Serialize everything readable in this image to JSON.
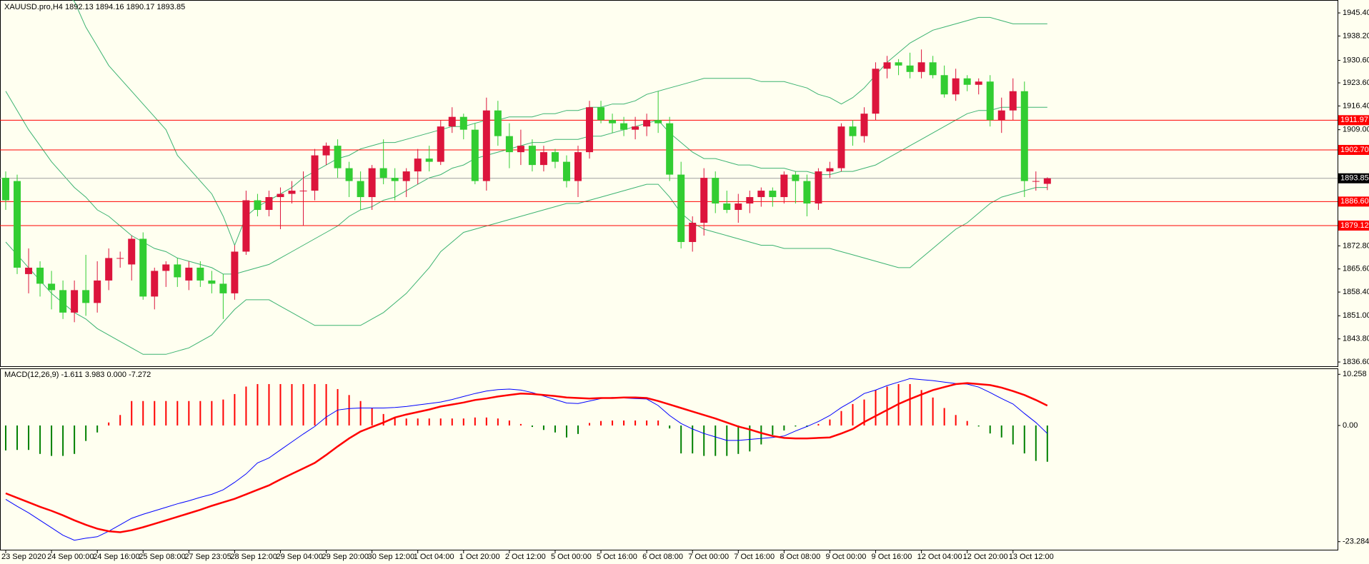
{
  "chart_data": [
    {
      "type": "candlestick",
      "title": "XAUUSD.pro,H4  1892.13 1894.16 1890.17 1893.85",
      "categories": [
        "23 Sep 2020",
        null,
        null,
        null,
        "24 Sep 00:00",
        null,
        null,
        null,
        "24 Sep 16:00",
        null,
        null,
        null,
        "25 Sep 08:00",
        null,
        null,
        null,
        "27 Sep 23:05",
        null,
        null,
        null,
        "28 Sep 12:00",
        null,
        null,
        null,
        "29 Sep 04:00",
        null,
        null,
        null,
        "29 Sep 20:00",
        null,
        null,
        null,
        "30 Sep 12:00",
        null,
        null,
        null,
        "1 Oct 04:00",
        null,
        null,
        null,
        "1 Oct 20:00",
        null,
        null,
        null,
        "2 Oct 12:00",
        null,
        null,
        null,
        "5 Oct 00:00",
        null,
        null,
        null,
        "5 Oct 16:00",
        null,
        null,
        null,
        "6 Oct 08:00",
        null,
        null,
        null,
        "7 Oct 00:00",
        null,
        null,
        null,
        "7 Oct 16:00",
        null,
        null,
        null,
        "8 Oct 08:00",
        null,
        null,
        null,
        "9 Oct 00:00",
        null,
        null,
        null,
        "9 Oct 16:00",
        null,
        null,
        null,
        "12 Oct 04:00",
        null,
        null,
        null,
        "12 Oct 20:00",
        null,
        null,
        null,
        "13 Oct 12:00",
        null,
        null,
        null
      ],
      "open": [
        1894,
        1893,
        1864,
        1866,
        1861,
        1859,
        1852,
        1859,
        1855,
        1862,
        1869,
        1867,
        1875,
        1857,
        1865,
        1867,
        1862,
        1866,
        1862,
        1861,
        1858,
        1871,
        1887,
        1884,
        1888,
        1889,
        1890,
        1890,
        1901,
        1904,
        1897,
        1893,
        1888,
        1897,
        1894,
        1893,
        1896,
        1900,
        1899,
        1910,
        1913,
        1909,
        1893,
        1915,
        1907,
        1902,
        1904,
        1898,
        1902,
        1899,
        1893,
        1902,
        1916,
        1912,
        1911,
        1909,
        1910,
        1912,
        1911,
        1895,
        1874,
        1880,
        1894,
        1886,
        1884,
        1886,
        1888,
        1890,
        1888,
        1895,
        1893,
        1886,
        1896,
        1897,
        1910,
        1907,
        1914,
        1928,
        1930,
        1929,
        1927,
        1930,
        1926,
        1920,
        1925,
        1923,
        1924,
        1912,
        1915,
        1921,
        1893,
        1892.13
      ],
      "high": [
        1896,
        1895,
        1872,
        1868,
        1865,
        1862,
        1862,
        1870,
        1868,
        1872,
        1871,
        1876,
        1877,
        1866,
        1868,
        1869,
        1868,
        1868,
        1865,
        1864,
        1873,
        1890,
        1889,
        1890,
        1891,
        1893,
        1896,
        1903,
        1905,
        1906,
        1899,
        1896,
        1898,
        1906,
        1897,
        1897,
        1903,
        1904,
        1912,
        1916,
        1914,
        1911,
        1919,
        1918,
        1911,
        1909,
        1906,
        1904,
        1903,
        1901,
        1904,
        1918,
        1918,
        1914,
        1913,
        1913,
        1914,
        1921,
        1913,
        1899,
        1882,
        1897,
        1896,
        1890,
        1889,
        1890,
        1891,
        1891,
        1896,
        1896,
        1895,
        1897,
        1899,
        1911,
        1912,
        1916,
        1930,
        1932,
        1931,
        1933,
        1934,
        1932,
        1929,
        1928,
        1926,
        1925,
        1926,
        1919,
        1925,
        1924,
        1896,
        1894.16
      ],
      "low": [
        1884,
        1864,
        1858,
        1857,
        1853,
        1850,
        1849,
        1851,
        1852,
        1859,
        1866,
        1862,
        1856,
        1853,
        1860,
        1860,
        1859,
        1860,
        1858,
        1850,
        1856,
        1870,
        1882,
        1882,
        1878,
        1886,
        1879,
        1887,
        1898,
        1894,
        1888,
        1884,
        1884,
        1892,
        1887,
        1888,
        1892,
        1896,
        1898,
        1908,
        1906,
        1892,
        1890,
        1904,
        1897,
        1898,
        1896,
        1896,
        1897,
        1891,
        1888,
        1900,
        1911,
        1908,
        1907,
        1906,
        1907,
        1908,
        1893,
        1872,
        1871,
        1876,
        1883,
        1883,
        1880,
        1883,
        1885,
        1885,
        1886,
        1886,
        1882,
        1884,
        1894,
        1896,
        1904,
        1905,
        1912,
        1925,
        1926,
        1925,
        1925,
        1925,
        1919,
        1918,
        1921,
        1920,
        1910,
        1908,
        1912,
        1888,
        1890,
        1890.17
      ],
      "close": [
        1887,
        1866,
        1866,
        1861,
        1859,
        1852,
        1859,
        1855,
        1862,
        1869,
        1869,
        1875,
        1857,
        1865,
        1867,
        1863,
        1866,
        1862,
        1861,
        1858,
        1871,
        1887,
        1884,
        1888,
        1889,
        1890,
        1890,
        1901,
        1904,
        1897,
        1893,
        1888,
        1897,
        1894,
        1893,
        1896,
        1900,
        1899,
        1910,
        1913,
        1909,
        1893,
        1915,
        1907,
        1902,
        1904,
        1898,
        1902,
        1899,
        1893,
        1902,
        1916,
        1912,
        1911,
        1909,
        1910,
        1912,
        1911,
        1895,
        1874,
        1880,
        1894,
        1886,
        1884,
        1886,
        1888,
        1890,
        1888,
        1895,
        1893,
        1886,
        1896,
        1897,
        1910,
        1907,
        1914,
        1928,
        1930,
        1929,
        1927,
        1930,
        1926,
        1920,
        1925,
        1923,
        1924,
        1912,
        1915,
        1921,
        1893,
        1893,
        1893.85
      ],
      "up_color": "#dc143c",
      "down_color": "#32cd32",
      "overlays": [
        {
          "color": "#3cb371",
          "values": [
            1965,
            1962,
            1959,
            1957,
            1955,
            1952,
            1949,
            1941,
            1935,
            1929,
            1925,
            1921,
            1917,
            1913,
            1909,
            1901,
            1897,
            1893,
            1889,
            1882,
            1873,
            1882,
            1885,
            1887,
            1889,
            1891,
            1894,
            1896,
            1898,
            1900,
            1901,
            1903,
            1904,
            1905,
            1905,
            1906,
            1907,
            1908,
            1909,
            1910,
            1910,
            1911,
            1912,
            1912,
            1913,
            1913,
            1913,
            1914,
            1914,
            1915,
            1915,
            1916,
            1916,
            1917,
            1917,
            1918,
            1920,
            1921,
            1922,
            1923,
            1924,
            1925,
            1925,
            1925,
            1925,
            1925,
            1924,
            1924,
            1924,
            1923,
            1922,
            1920,
            1919,
            1917,
            1919,
            1922,
            1926,
            1930,
            1933,
            1936,
            1938,
            1940,
            1941,
            1942,
            1943,
            1944,
            1944,
            1943,
            1942,
            1942,
            1942,
            1942
          ]
        },
        {
          "color": "#3cb371",
          "values": [
            1921,
            1915,
            1909,
            1904,
            1899,
            1895,
            1891,
            1888,
            1884,
            1882,
            1879,
            1876,
            1874,
            1872,
            1871,
            1869,
            1868,
            1867,
            1866,
            1864,
            1864,
            1865,
            1866,
            1867,
            1869,
            1871,
            1873,
            1875,
            1877,
            1879,
            1882,
            1884,
            1885,
            1887,
            1888,
            1890,
            1892,
            1894,
            1895,
            1897,
            1898,
            1900,
            1901,
            1902,
            1903,
            1904,
            1905,
            1905,
            1906,
            1906,
            1906,
            1907,
            1907,
            1908,
            1909,
            1910,
            1911,
            1912,
            1908,
            1905,
            1902,
            1900,
            1900,
            1899,
            1898,
            1898,
            1897,
            1897,
            1897,
            1896,
            1896,
            1895,
            1895,
            1896,
            1896,
            1897,
            1898,
            1900,
            1902,
            1904,
            1906,
            1908,
            1910,
            1912,
            1914,
            1915,
            1915,
            1916,
            1916,
            1916,
            1916,
            1916
          ]
        },
        {
          "color": "#3cb371",
          "values": [
            1874,
            1870,
            1866,
            1862,
            1858,
            1855,
            1852,
            1850,
            1847,
            1845,
            1843,
            1841,
            1839,
            1839,
            1839,
            1840,
            1841,
            1843,
            1845,
            1849,
            1853,
            1856,
            1856,
            1856,
            1854,
            1852,
            1850,
            1848,
            1848,
            1848,
            1848,
            1848,
            1850,
            1852,
            1855,
            1858,
            1862,
            1866,
            1871,
            1874,
            1877,
            1878,
            1879,
            1880,
            1881,
            1882,
            1883,
            1884,
            1885,
            1886,
            1886,
            1887,
            1888,
            1889,
            1890,
            1891,
            1892,
            1892,
            1888,
            1883,
            1880,
            1878,
            1877,
            1876,
            1875,
            1874,
            1873,
            1873,
            1872,
            1872,
            1872,
            1872,
            1872,
            1871,
            1870,
            1869,
            1868,
            1867,
            1866,
            1866,
            1869,
            1872,
            1875,
            1878,
            1880,
            1883,
            1886,
            1888,
            1889,
            1890,
            1891,
            1891
          ]
        }
      ],
      "levels": [
        1911.97,
        {
          "value": 1902.7,
          "label": "1902.70"
        },
        {
          "value": 1886.6,
          "label": "1886.60"
        },
        1879.12
      ],
      "level_color": "#ff0000",
      "ylim": [
        1835.5,
        1949.2
      ],
      "yticks": [
        {
          "value": 1945.4,
          "label": "1945.40"
        },
        {
          "value": 1938.2,
          "label": "1938.20"
        },
        {
          "value": 1930.6,
          "label": "1930.60"
        },
        {
          "value": 1923.6,
          "label": "1923.60"
        },
        {
          "value": 1916.4,
          "label": "1916.40"
        },
        {
          "value": 1909,
          "label": "1909.00"
        },
        {
          "value": 1872.8,
          "label": "1872.80"
        },
        {
          "value": 1865.6,
          "label": "1865.60"
        },
        {
          "value": 1858.4,
          "label": "1858.40"
        },
        {
          "value": 1851,
          "label": "1851.00"
        },
        {
          "value": 1843.8,
          "label": "1843.80"
        },
        {
          "value": 1836.6,
          "label": "1836.60"
        }
      ]
    },
    {
      "type": "macd",
      "title": "MACD(12,26,9) -1.611 3.983 0.000 -7.272",
      "histogram": {
        "up_color": "#ff0000",
        "down_color": "#008000",
        "values": [
          -5,
          -4.9,
          -4.9,
          -5.7,
          -6.1,
          -6.1,
          -5.7,
          -3.1,
          -1.4,
          0.6,
          2.1,
          4.9,
          4.9,
          4.9,
          4.9,
          4.9,
          4.9,
          4.9,
          4.9,
          5.2,
          6.3,
          7.8,
          8.3,
          8.3,
          8.3,
          8.3,
          8.3,
          8.3,
          8.3,
          7.3,
          6.1,
          4.9,
          3.5,
          2.3,
          1.6,
          1.4,
          1.4,
          1.4,
          1.4,
          1.4,
          1.4,
          1.6,
          1.6,
          1.4,
          1,
          0.3,
          -0.3,
          -0.9,
          -1.4,
          -2.4,
          -1.7,
          0.5,
          0.9,
          1,
          1,
          1,
          1,
          1,
          -0.6,
          -5.6,
          -5.6,
          -6.1,
          -6.1,
          -6.1,
          -5.7,
          -5.2,
          -3.8,
          -1.9,
          -1,
          -0.2,
          -0.3,
          0.3,
          1.2,
          2.9,
          4.3,
          5.2,
          7.1,
          7.8,
          8.3,
          8.3,
          7.1,
          5.6,
          3.5,
          2.1,
          0.9,
          -0.2,
          -1.6,
          -2.4,
          -3.8,
          -5.6,
          -7.1,
          -7.272
        ]
      },
      "series": [
        {
          "color": "#0000ff",
          "width": 1,
          "values": [
            -14.8,
            -16.2,
            -17.5,
            -19,
            -20.5,
            -22,
            -23,
            -22.6,
            -22.3,
            -21.2,
            -19.9,
            -18.6,
            -17.8,
            -17.1,
            -16.4,
            -15.7,
            -15.1,
            -14.4,
            -13.8,
            -12.9,
            -11.4,
            -9.7,
            -7.5,
            -6.5,
            -4.9,
            -3.3,
            -1.7,
            -0.2,
            1.7,
            3.1,
            3.4,
            3.5,
            3.5,
            3.5,
            3.6,
            3.8,
            4.1,
            4.4,
            4.7,
            5.2,
            5.8,
            6.4,
            6.9,
            7.2,
            7.3,
            7.1,
            6.6,
            5.9,
            5.2,
            4.5,
            4.4,
            4.9,
            5.4,
            5.6,
            5.5,
            5.4,
            5.3,
            4,
            2,
            0.4,
            -0.7,
            -1.6,
            -2.3,
            -3,
            -3,
            -2.8,
            -2.6,
            -2.4,
            -2.1,
            -1.1,
            -0.2,
            0.8,
            2,
            3.6,
            4.9,
            6.4,
            7.1,
            8,
            8.7,
            9.4,
            9.2,
            9,
            8.7,
            8.4,
            8.3,
            7.7,
            6.6,
            5.4,
            4.3,
            2.4,
            0.6,
            -1.611
          ]
        },
        {
          "color": "#ff0000",
          "width": 2.5,
          "values": [
            -13.6,
            -14.5,
            -15.4,
            -16.3,
            -17.1,
            -18,
            -19,
            -19.9,
            -20.7,
            -21.2,
            -21.4,
            -21,
            -20.4,
            -19.7,
            -19,
            -18.3,
            -17.6,
            -16.9,
            -16.1,
            -15.4,
            -14.7,
            -13.8,
            -12.9,
            -12,
            -10.8,
            -9.7,
            -8.6,
            -7.5,
            -5.9,
            -4.2,
            -2.6,
            -1.2,
            -0.3,
            0.6,
            1.6,
            2.2,
            2.7,
            3.2,
            3.8,
            4.2,
            4.6,
            5.1,
            5.4,
            5.8,
            6.1,
            6.4,
            6.3,
            6.1,
            5.9,
            5.6,
            5.5,
            5.4,
            5.5,
            5.5,
            5.6,
            5.6,
            5.5,
            4.9,
            4.2,
            3.5,
            2.8,
            2.1,
            1.4,
            0.6,
            -0.2,
            -0.8,
            -1.5,
            -2.1,
            -2.5,
            -2.6,
            -2.6,
            -2.5,
            -2.4,
            -1.6,
            -0.7,
            0.7,
            1.9,
            3.1,
            4.3,
            5.3,
            6.2,
            7.1,
            7.7,
            8.3,
            8.5,
            8.3,
            8.1,
            7.6,
            6.9,
            6.1,
            5.1,
            3.983
          ]
        }
      ],
      "ylim": [
        -24.9,
        11.3
      ],
      "yticks": [
        10.258,
        {
          "value": 0,
          "label": "0.00"
        },
        -23.284
      ]
    }
  ]
}
